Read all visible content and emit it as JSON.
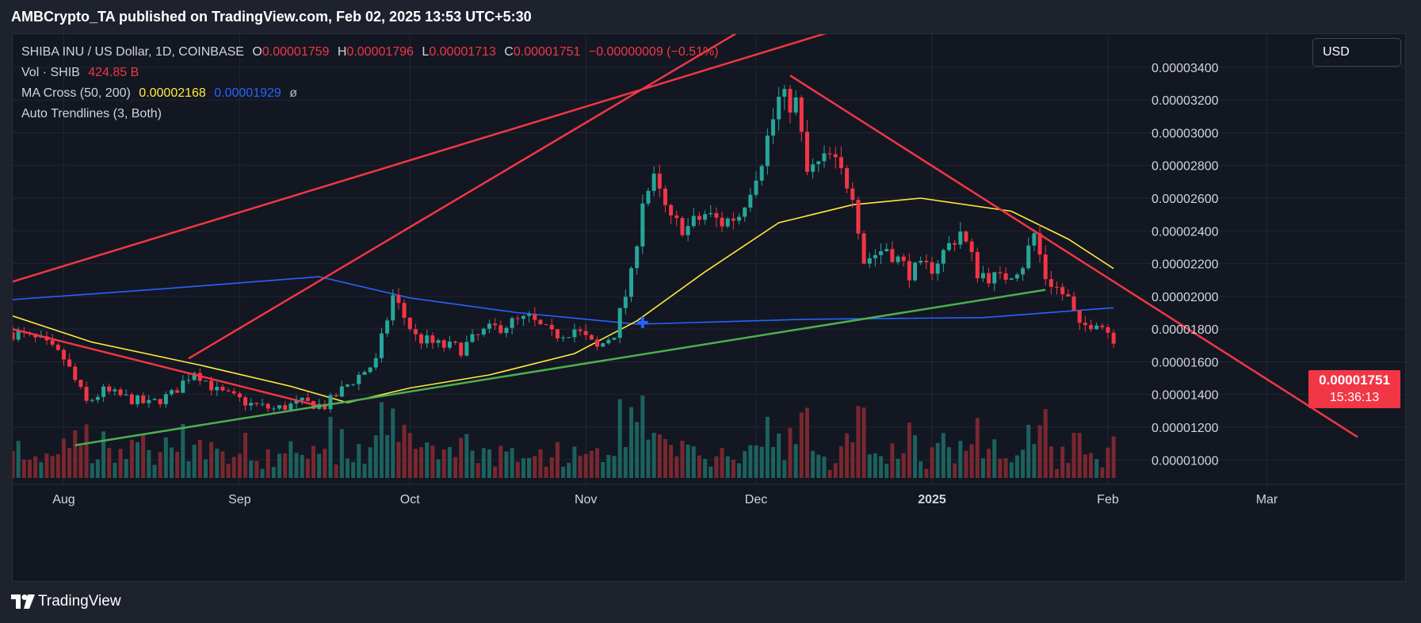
{
  "header": {
    "published": "AMBCrypto_TA published on TradingView.com, Feb 02, 2025 13:53 UTC+5:30"
  },
  "legend": {
    "symbol": "SHIBA INU / US Dollar, 1D, COINBASE",
    "o_label": "O",
    "o_value": "0.00001759",
    "h_label": "H",
    "h_value": "0.00001796",
    "l_label": "L",
    "l_value": "0.00001713",
    "c_label": "C",
    "c_value": "0.00001751",
    "change": "−0.00000009 (−0.51%)",
    "vol_label": "Vol · SHIB",
    "vol_value": "424.85 B",
    "ma_label": "MA Cross (50, 200)",
    "ma50_value": "0.00002168",
    "ma200_value": "0.00001929",
    "ma_extra": "ø",
    "trend_label": "Auto Trendlines (3, Both)"
  },
  "currency": "USD",
  "price_tag": {
    "price": "0.00001751",
    "countdown": "15:36:13"
  },
  "footer": {
    "brand": "TradingView"
  },
  "colors": {
    "up": "#26a69a",
    "down": "#f23645",
    "ma50": "#ffeb3b",
    "ma200": "#2962ff",
    "resistance": "#f23645",
    "support": "#4caf50"
  },
  "chart_data": {
    "type": "candlestick",
    "x_axis": {
      "start": "2024-07-23",
      "end": "2025-03-23",
      "ticks": [
        {
          "label": "Aug",
          "date": "2024-08-01"
        },
        {
          "label": "Sep",
          "date": "2024-09-01"
        },
        {
          "label": "Oct",
          "date": "2024-10-01"
        },
        {
          "label": "Nov",
          "date": "2024-11-01"
        },
        {
          "label": "Dec",
          "date": "2024-12-01"
        },
        {
          "label": "2025",
          "date": "2025-01-01"
        },
        {
          "label": "Feb",
          "date": "2025-02-01"
        },
        {
          "label": "Mar",
          "date": "2025-03-01"
        }
      ]
    },
    "y_axis": {
      "min": 8.9e-06,
      "max": 3.54e-05,
      "ticks": [
        "0.00001000",
        "0.00001200",
        "0.00001400",
        "0.00001600",
        "0.00001800",
        "0.00002000",
        "0.00002200",
        "0.00002400",
        "0.00002600",
        "0.00002800",
        "0.00003000",
        "0.00003200",
        "0.00003400"
      ]
    },
    "grid": true,
    "price_path": [
      [
        "2024-07-23",
        1.78e-05
      ],
      [
        "2024-07-28",
        1.72e-05
      ],
      [
        "2024-08-01",
        1.62e-05
      ],
      [
        "2024-08-05",
        1.35e-05
      ],
      [
        "2024-08-08",
        1.42e-05
      ],
      [
        "2024-08-12",
        1.38e-05
      ],
      [
        "2024-08-16",
        1.34e-05
      ],
      [
        "2024-08-20",
        1.4e-05
      ],
      [
        "2024-08-24",
        1.55e-05
      ],
      [
        "2024-08-28",
        1.42e-05
      ],
      [
        "2024-09-03",
        1.34e-05
      ],
      [
        "2024-09-07",
        1.31e-05
      ],
      [
        "2024-09-12",
        1.35e-05
      ],
      [
        "2024-09-16",
        1.33e-05
      ],
      [
        "2024-09-20",
        1.46e-05
      ],
      [
        "2024-09-25",
        1.6e-05
      ],
      [
        "2024-09-28",
        2e-05
      ],
      [
        "2024-10-02",
        1.75e-05
      ],
      [
        "2024-10-06",
        1.7e-05
      ],
      [
        "2024-10-10",
        1.68e-05
      ],
      [
        "2024-10-14",
        1.78e-05
      ],
      [
        "2024-10-18",
        1.83e-05
      ],
      [
        "2024-10-22",
        1.86e-05
      ],
      [
        "2024-10-26",
        1.76e-05
      ],
      [
        "2024-10-30",
        1.8e-05
      ],
      [
        "2024-11-03",
        1.68e-05
      ],
      [
        "2024-11-06",
        1.78e-05
      ],
      [
        "2024-11-09",
        2.12e-05
      ],
      [
        "2024-11-11",
        2.6e-05
      ],
      [
        "2024-11-13",
        2.7e-05
      ],
      [
        "2024-11-16",
        2.45e-05
      ],
      [
        "2024-11-19",
        2.42e-05
      ],
      [
        "2024-11-22",
        2.5e-05
      ],
      [
        "2024-11-25",
        2.45e-05
      ],
      [
        "2024-11-28",
        2.5e-05
      ],
      [
        "2024-12-02",
        2.85e-05
      ],
      [
        "2024-12-05",
        3.2e-05
      ],
      [
        "2024-12-08",
        3.18e-05
      ],
      [
        "2024-12-10",
        2.75e-05
      ],
      [
        "2024-12-14",
        2.85e-05
      ],
      [
        "2024-12-18",
        2.65e-05
      ],
      [
        "2024-12-20",
        2.22e-05
      ],
      [
        "2024-12-24",
        2.3e-05
      ],
      [
        "2024-12-28",
        2.15e-05
      ],
      [
        "2025-01-01",
        2.18e-05
      ],
      [
        "2025-01-06",
        2.4e-05
      ],
      [
        "2025-01-09",
        2.15e-05
      ],
      [
        "2025-01-13",
        2.1e-05
      ],
      [
        "2025-01-17",
        2.2e-05
      ],
      [
        "2025-01-19",
        2.38e-05
      ],
      [
        "2025-01-21",
        2.12e-05
      ],
      [
        "2025-01-25",
        1.98e-05
      ],
      [
        "2025-01-27",
        1.8e-05
      ],
      [
        "2025-01-30",
        1.86e-05
      ],
      [
        "2025-02-02",
        1.75e-05
      ]
    ],
    "ma50_path": [
      [
        "2024-07-23",
        1.88e-05
      ],
      [
        "2024-08-06",
        1.72e-05
      ],
      [
        "2024-08-25",
        1.58e-05
      ],
      [
        "2024-09-10",
        1.45e-05
      ],
      [
        "2024-09-20",
        1.35e-05
      ],
      [
        "2024-10-01",
        1.44e-05
      ],
      [
        "2024-10-15",
        1.52e-05
      ],
      [
        "2024-10-30",
        1.65e-05
      ],
      [
        "2024-11-10",
        1.85e-05
      ],
      [
        "2024-11-22",
        2.15e-05
      ],
      [
        "2024-12-05",
        2.45e-05
      ],
      [
        "2024-12-18",
        2.56e-05
      ],
      [
        "2024-12-30",
        2.6e-05
      ],
      [
        "2025-01-15",
        2.52e-05
      ],
      [
        "2025-01-25",
        2.35e-05
      ],
      [
        "2025-02-02",
        2.17e-05
      ]
    ],
    "ma200_path": [
      [
        "2024-07-23",
        1.98e-05
      ],
      [
        "2024-08-20",
        2.05e-05
      ],
      [
        "2024-09-15",
        2.12e-05
      ],
      [
        "2024-10-01",
        1.99e-05
      ],
      [
        "2024-10-20",
        1.9e-05
      ],
      [
        "2024-11-10",
        1.83e-05
      ],
      [
        "2024-12-10",
        1.86e-05
      ],
      [
        "2025-01-10",
        1.87e-05
      ],
      [
        "2025-02-02",
        1.93e-05
      ]
    ],
    "trendlines": [
      {
        "color": "resistance",
        "from": [
          "2024-07-23",
          2.09e-05
        ],
        "to": [
          "2024-12-22",
          3.7e-05
        ]
      },
      {
        "color": "resistance",
        "from": [
          "2024-08-23",
          1.62e-05
        ],
        "to": [
          "2024-12-02",
          3.7e-05
        ]
      },
      {
        "color": "resistance",
        "from": [
          "2024-07-23",
          1.8e-05
        ],
        "to": [
          "2024-09-15",
          1.33e-05
        ]
      },
      {
        "color": "resistance",
        "from": [
          "2024-12-07",
          3.35e-05
        ],
        "to": [
          "2025-03-17",
          1.14e-05
        ]
      },
      {
        "color": "support",
        "from": [
          "2024-08-03",
          1.09e-05
        ],
        "to": [
          "2025-01-21",
          2.04e-05
        ]
      }
    ],
    "cross_marker": [
      "2024-11-11",
      1.84e-05
    ],
    "volume": {
      "ymax": 1.0
    }
  }
}
